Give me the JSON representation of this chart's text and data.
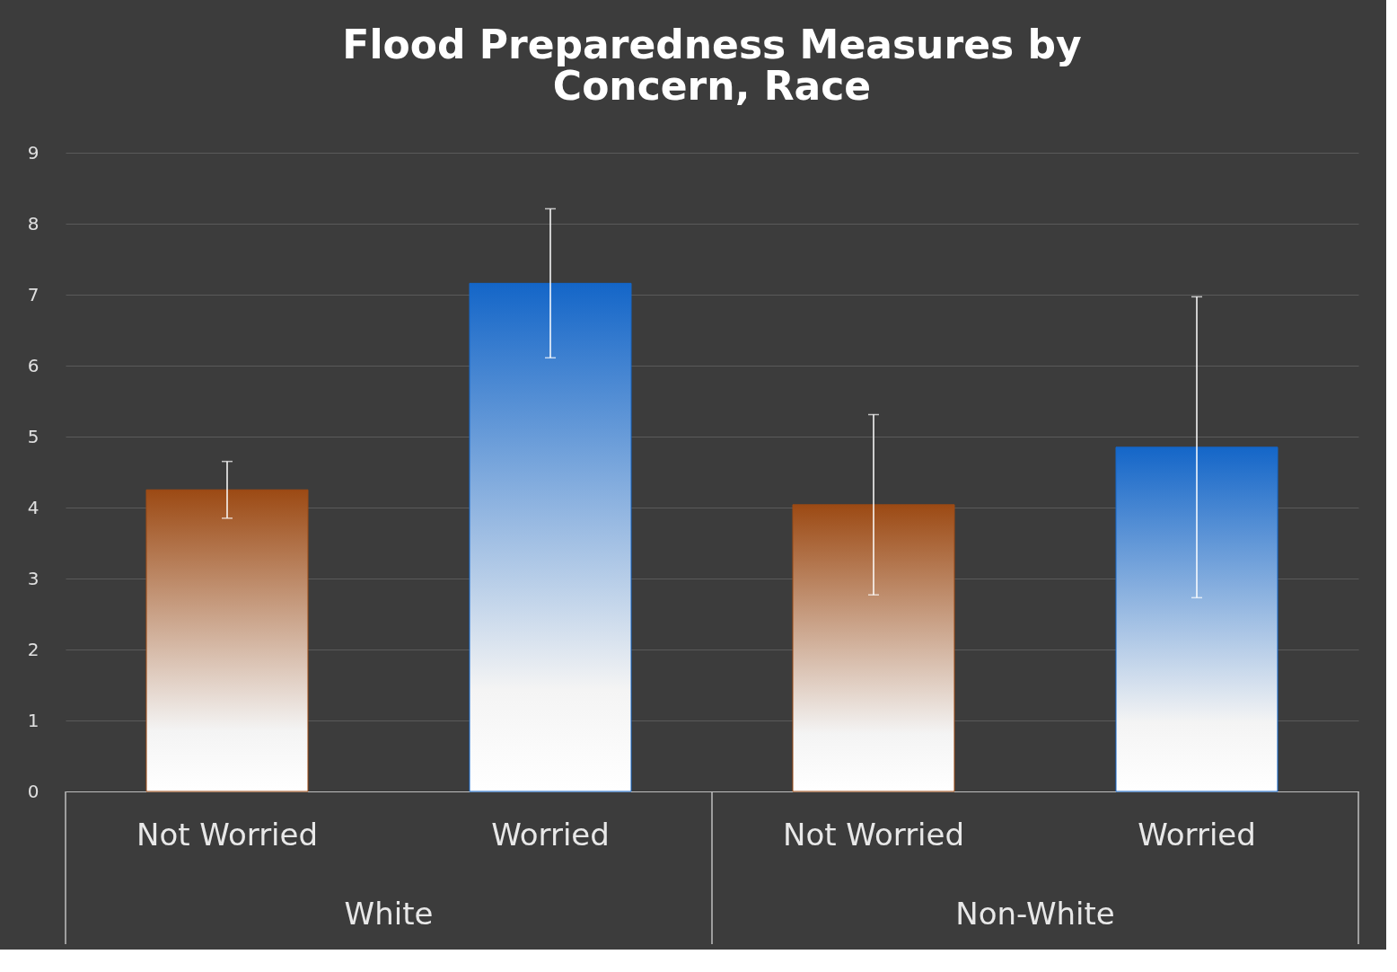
{
  "chart_data": {
    "type": "bar",
    "title": "Flood Preparedness Measures by Concern, Race",
    "categories": [
      "Not Worried",
      "Worried",
      "Not Worried",
      "Worried"
    ],
    "values": [
      4.25,
      7.16,
      4.04,
      4.85
    ],
    "errors": [
      0.4,
      1.05,
      1.27,
      2.12
    ],
    "colors": [
      "#9c4a14",
      "#1466c8",
      "#9c4a14",
      "#1466c8"
    ],
    "annotations": [
      "White",
      "Non-White"
    ],
    "ylim": [
      0,
      9
    ],
    "yticks": [
      0,
      1,
      2,
      3,
      4,
      5,
      6,
      7,
      8,
      9
    ],
    "grid": "y"
  }
}
